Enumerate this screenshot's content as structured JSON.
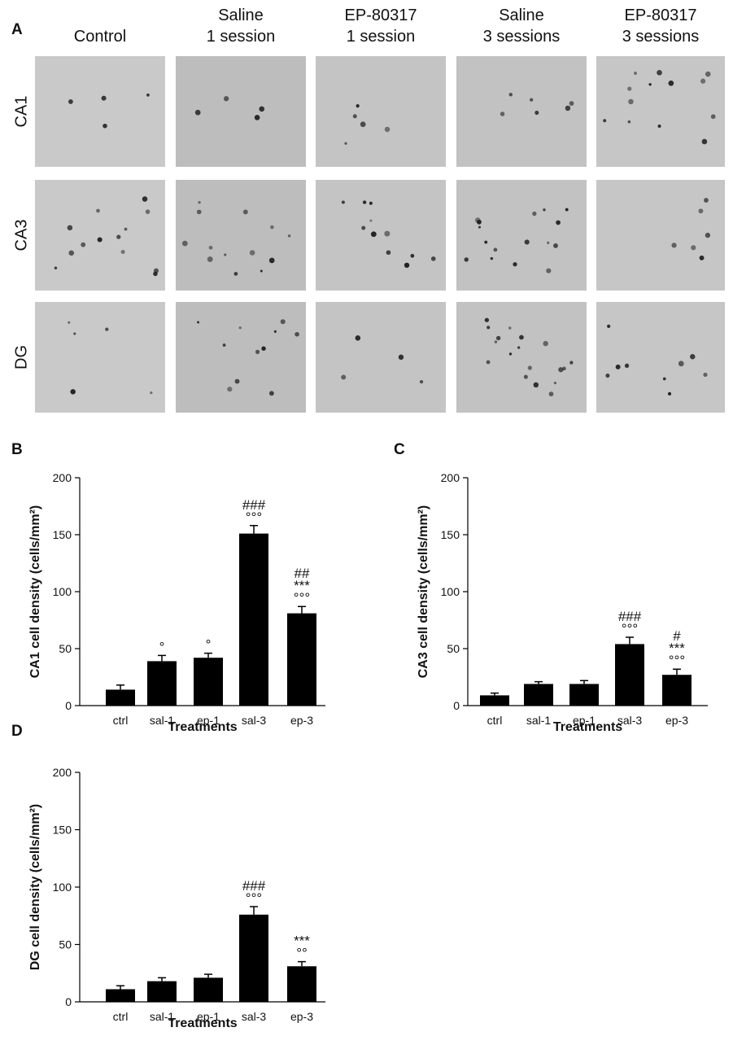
{
  "panel_a": {
    "panel_label": "A",
    "columns": [
      [
        "Control"
      ],
      [
        "Saline",
        "1 session"
      ],
      [
        "EP-80317",
        "1 session"
      ],
      [
        "Saline",
        "3 sessions"
      ],
      [
        "EP-80317",
        "3 sessions"
      ]
    ],
    "rows": [
      "CA1",
      "CA3",
      "DG"
    ]
  },
  "chart_data": [
    {
      "type": "bar",
      "panel_label": "B",
      "y_label": "CA1 cell density (cells/mm²)",
      "x_label": "Treatments",
      "categories": [
        "ctrl",
        "sal-1",
        "ep-1",
        "sal-3",
        "ep-3"
      ],
      "values": [
        14,
        39,
        42,
        151,
        81
      ],
      "errors": [
        4,
        5,
        4,
        7,
        6
      ],
      "annotations": [
        [],
        [
          "°"
        ],
        [
          "°"
        ],
        [
          "###",
          "°°°"
        ],
        [
          "##",
          "***",
          "°°°"
        ]
      ],
      "color": "#000000",
      "ylim": [
        0,
        200
      ],
      "yticks": [
        0,
        50,
        100,
        150,
        200
      ]
    },
    {
      "type": "bar",
      "panel_label": "C",
      "y_label": "CA3 cell density (cells/mm²)",
      "x_label": "Treatments",
      "categories": [
        "ctrl",
        "sal-1",
        "ep-1",
        "sal-3",
        "ep-3"
      ],
      "values": [
        9,
        19,
        19,
        54,
        27
      ],
      "errors": [
        2,
        2,
        3,
        6,
        5
      ],
      "annotations": [
        [],
        [],
        [],
        [
          "###",
          "°°°"
        ],
        [
          "#",
          "***",
          "°°°"
        ]
      ],
      "color": "#000000",
      "ylim": [
        0,
        200
      ],
      "yticks": [
        0,
        50,
        100,
        150,
        200
      ]
    },
    {
      "type": "bar",
      "panel_label": "D",
      "y_label": "DG cell density (cells/mm²)",
      "x_label": "Treatments",
      "categories": [
        "ctrl",
        "sal-1",
        "ep-1",
        "sal-3",
        "ep-3"
      ],
      "values": [
        11,
        18,
        21,
        76,
        31
      ],
      "errors": [
        3,
        3,
        3,
        7,
        4
      ],
      "annotations": [
        [],
        [],
        [],
        [
          "###",
          "°°°"
        ],
        [
          "***",
          "°°"
        ]
      ],
      "color": "#000000",
      "ylim": [
        0,
        200
      ],
      "yticks": [
        0,
        50,
        100,
        150,
        200
      ]
    }
  ]
}
